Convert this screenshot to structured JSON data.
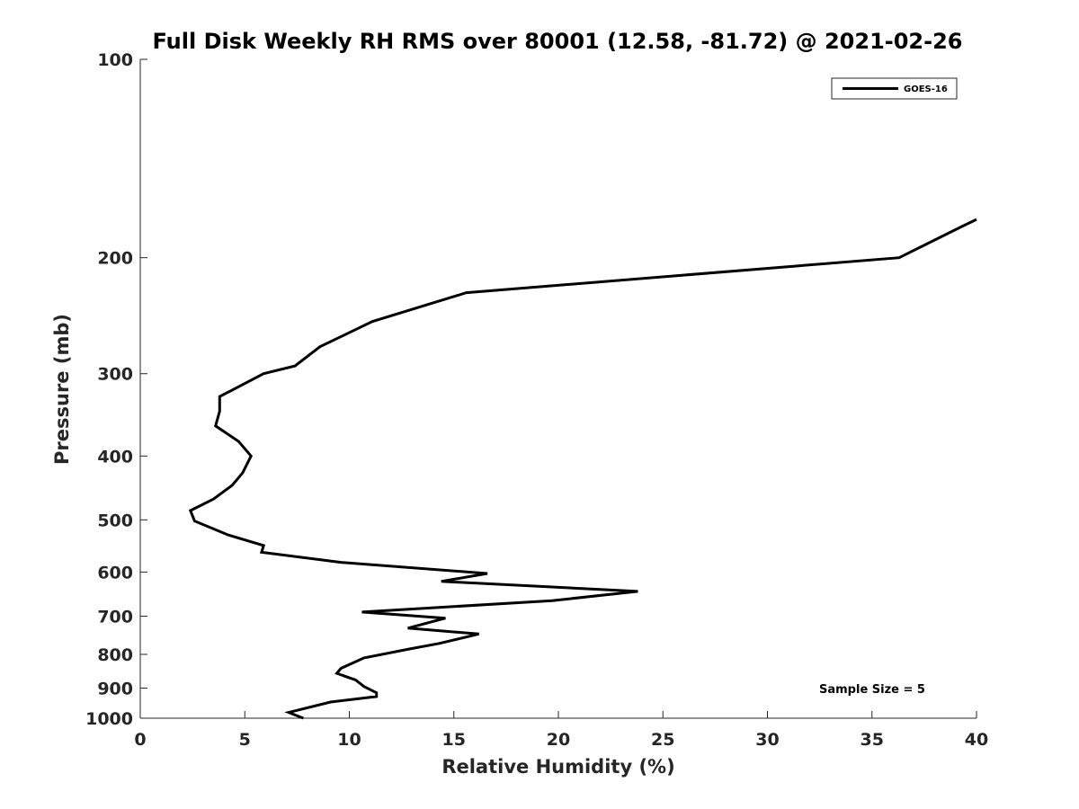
{
  "chart_data": {
    "type": "line",
    "title": "Full Disk Weekly RH RMS over 80001 (12.58, -81.72) @ 2021-02-26",
    "xlabel": "Relative Humidity (%)",
    "ylabel": "Pressure (mb)",
    "xlim": [
      0,
      40
    ],
    "ylim": [
      100,
      1000
    ],
    "y_scale": "log",
    "y_reversed": true,
    "grid": false,
    "legend_position": "top-right",
    "x_ticks": [
      0,
      5,
      10,
      15,
      20,
      25,
      30,
      35,
      40
    ],
    "y_ticks": [
      100,
      200,
      300,
      400,
      500,
      600,
      700,
      800,
      900,
      1000
    ],
    "series": [
      {
        "name": "GOES-16",
        "color": "#000000",
        "points": [
          [
            40.0,
            175
          ],
          [
            39.2,
            180
          ],
          [
            36.3,
            200
          ],
          [
            15.6,
            226
          ],
          [
            11.1,
            250
          ],
          [
            8.6,
            273
          ],
          [
            7.4,
            292
          ],
          [
            5.9,
            300
          ],
          [
            3.8,
            325
          ],
          [
            3.8,
            342
          ],
          [
            3.6,
            360
          ],
          [
            4.7,
            380
          ],
          [
            5.3,
            400
          ],
          [
            4.9,
            424
          ],
          [
            4.4,
            443
          ],
          [
            3.5,
            465
          ],
          [
            2.4,
            484
          ],
          [
            2.6,
            502
          ],
          [
            4.2,
            527
          ],
          [
            5.9,
            547
          ],
          [
            5.8,
            560
          ],
          [
            9.6,
            580
          ],
          [
            16.6,
            603
          ],
          [
            14.4,
            620
          ],
          [
            23.8,
            642
          ],
          [
            19.7,
            663
          ],
          [
            10.6,
            690
          ],
          [
            14.6,
            705
          ],
          [
            12.8,
            730
          ],
          [
            16.2,
            745
          ],
          [
            14.3,
            770
          ],
          [
            12.9,
            785
          ],
          [
            10.7,
            810
          ],
          [
            9.6,
            840
          ],
          [
            9.4,
            855
          ],
          [
            10.3,
            875
          ],
          [
            10.7,
            895
          ],
          [
            11.3,
            915
          ],
          [
            11.3,
            927
          ],
          [
            9.1,
            945
          ],
          [
            7.1,
            980
          ],
          [
            7.8,
            1000
          ]
        ]
      }
    ],
    "annotation": "Sample Size = 5"
  }
}
